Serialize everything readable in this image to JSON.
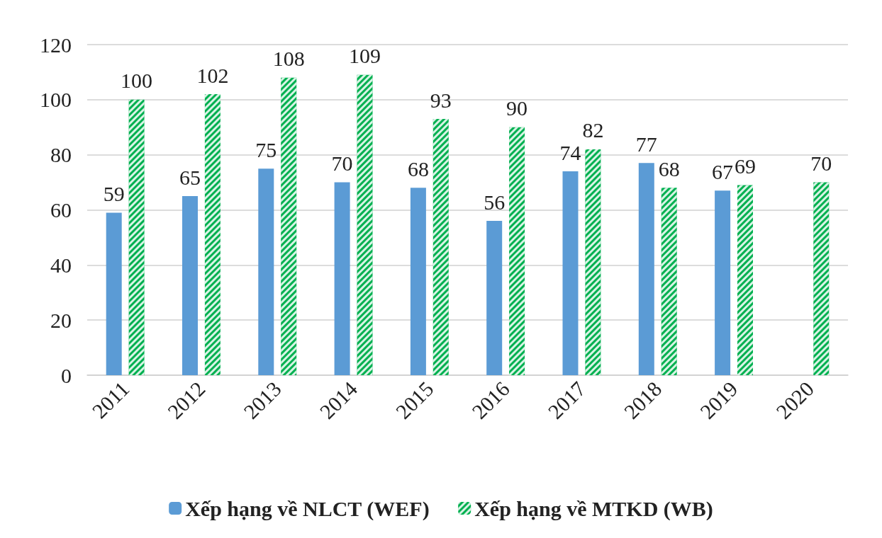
{
  "chart_data": {
    "type": "bar",
    "categories": [
      "2011",
      "2012",
      "2013",
      "2014",
      "2015",
      "2016",
      "2017",
      "2018",
      "2019",
      "2020"
    ],
    "series": [
      {
        "name": "Xếp hạng về NLCT (WEF)",
        "color": "#5b9bd5",
        "values": [
          59,
          65,
          75,
          70,
          68,
          56,
          74,
          77,
          67,
          null
        ]
      },
      {
        "name": "Xếp hạng về MTKD (WB)",
        "color": "#00b050",
        "values": [
          100,
          102,
          108,
          109,
          93,
          90,
          82,
          68,
          69,
          70
        ]
      }
    ],
    "ylim": [
      0,
      120
    ],
    "yticks": [
      0,
      20,
      40,
      60,
      80,
      100,
      120
    ],
    "grid": "y",
    "legend": "bottom",
    "data_labels": true
  }
}
